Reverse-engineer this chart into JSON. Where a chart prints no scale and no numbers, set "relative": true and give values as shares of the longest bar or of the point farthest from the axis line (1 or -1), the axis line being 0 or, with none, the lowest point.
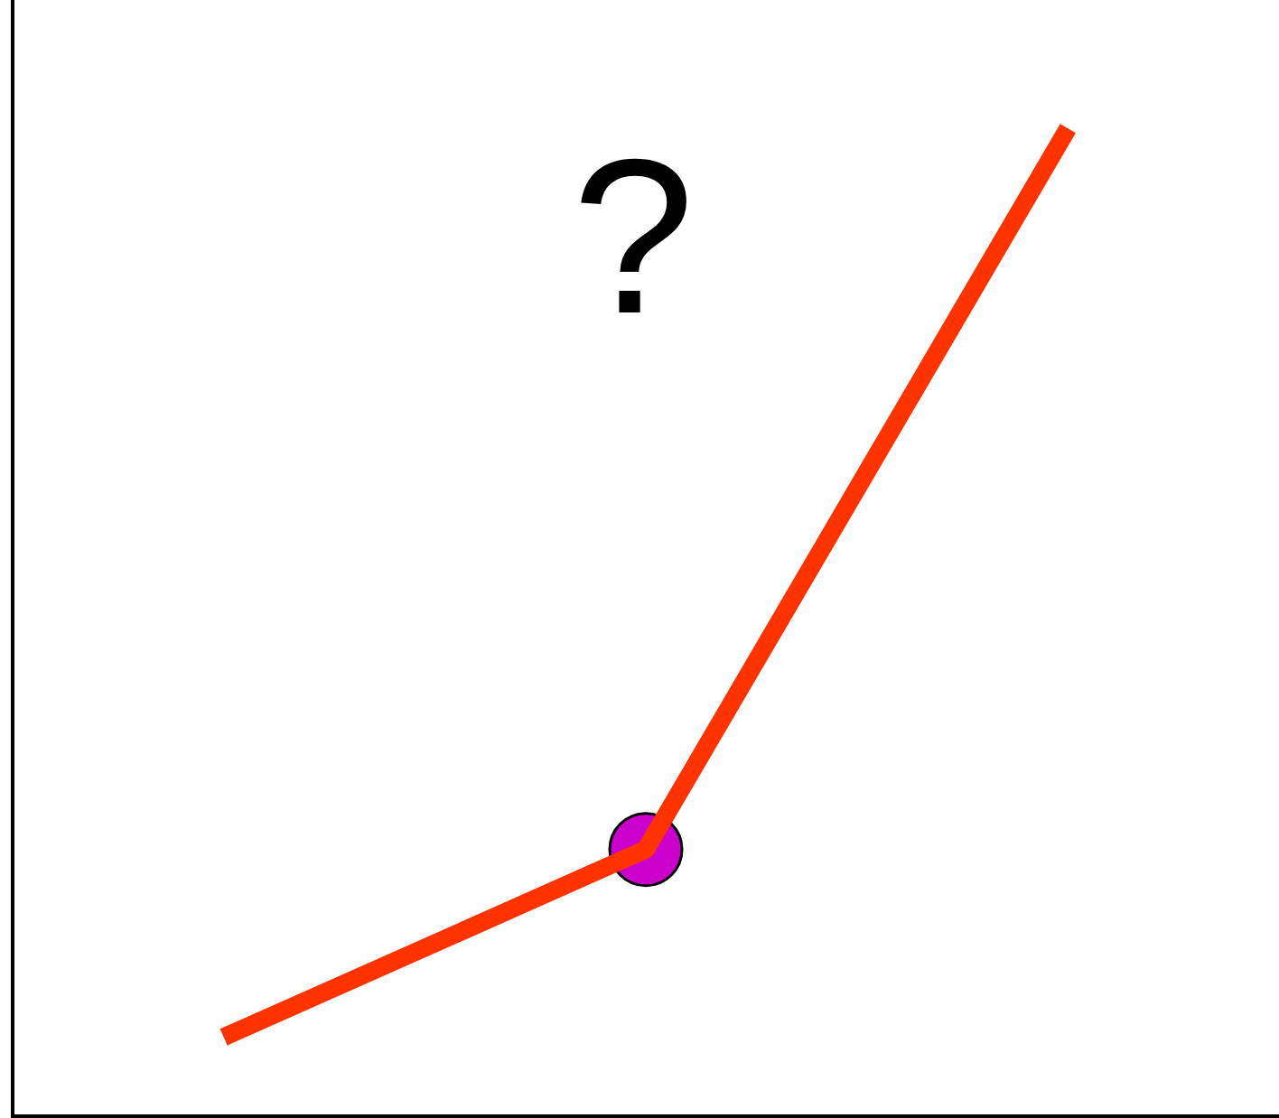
{
  "chart_data": {
    "type": "line",
    "relative": true,
    "tick_labels": false,
    "categories": [
      null,
      null,
      null
    ],
    "series": [
      {
        "type": "line",
        "color": "#ff3300",
        "values": [
          0.08,
          0.27,
          1
        ],
        "marker": "none",
        "line_style": "solid"
      },
      {
        "type": "line",
        "color": "#cc00cc",
        "values": [
          null,
          0.27,
          null
        ],
        "marker": "circle"
      }
    ],
    "annotations": [
      "?"
    ]
  }
}
